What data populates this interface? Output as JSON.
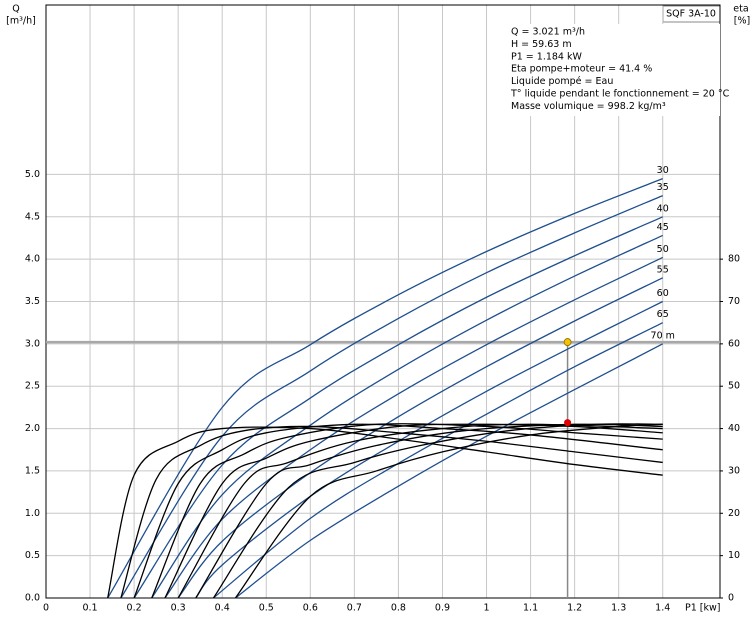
{
  "chart_data": {
    "type": "line",
    "title": "SQF 3A-10",
    "ylabel": [
      "Q",
      "[m³/h]"
    ],
    "y2label": [
      "eta",
      "[%]"
    ],
    "xlabel": "P1 [kw]",
    "info": [
      "Q = 3.021 m³/h",
      "H = 59.63 m",
      "P1 = 1.184 kW",
      "Eta pompe+moteur = 41.4 %",
      "Liquide pompé = Eau",
      "T° liquide pendant le fonctionnement = 20 °C",
      "Masse volumique = 998.2 kg/m³"
    ],
    "xlim": [
      0,
      1.53
    ],
    "ylim": [
      0,
      7
    ],
    "y2lim": [
      0,
      140
    ],
    "xticks": [
      0,
      0.1,
      0.2,
      0.3,
      0.4,
      0.5,
      0.6,
      0.7,
      0.8,
      0.9,
      1,
      1.1,
      1.2,
      1.3,
      1.4
    ],
    "yticks": [
      {
        "value": 0,
        "label": "0.0"
      },
      0.5,
      {
        "value": 1,
        "label": "1.0"
      },
      1.5,
      {
        "value": 2,
        "label": "2.0"
      },
      2.5,
      {
        "value": 3,
        "label": "3.0"
      },
      3.5,
      {
        "value": 4,
        "label": "4.0"
      },
      4.5,
      {
        "value": 5,
        "label": "5.0"
      }
    ],
    "y2ticks": [
      0,
      10,
      20,
      30,
      40,
      50,
      60,
      70,
      80
    ],
    "grid": true,
    "operating_point": {
      "x": 1.184,
      "y": 3.021,
      "eta": 41.4,
      "color": "#f5c400",
      "eta_color": "#e00000"
    },
    "series": [
      {
        "name": "30",
        "color": "#1f4f8f",
        "x": [
          0.14,
          0.4,
          0.6,
          0.8,
          1.0,
          1.2,
          1.4
        ],
        "values": [
          0,
          2.25,
          2.99,
          3.58,
          4.09,
          4.54,
          4.95
        ]
      },
      {
        "name": "35",
        "color": "#1f4f8f",
        "x": [
          0.17,
          0.4,
          0.6,
          0.8,
          1.0,
          1.2,
          1.4
        ],
        "values": [
          0,
          1.91,
          2.68,
          3.3,
          3.84,
          4.31,
          4.75
        ]
      },
      {
        "name": "40",
        "color": "#1f4f8f",
        "x": [
          0.2,
          0.4,
          0.6,
          0.8,
          1.0,
          1.2,
          1.4
        ],
        "values": [
          0,
          1.57,
          2.36,
          2.99,
          3.55,
          4.04,
          4.5
        ]
      },
      {
        "name": "45",
        "color": "#1f4f8f",
        "x": [
          0.24,
          0.4,
          0.6,
          0.8,
          1.0,
          1.2,
          1.4
        ],
        "values": [
          0,
          1.22,
          2.04,
          2.7,
          3.28,
          3.8,
          4.28
        ]
      },
      {
        "name": "50",
        "color": "#1f4f8f",
        "x": [
          0.27,
          0.4,
          0.6,
          0.8,
          1.0,
          1.2,
          1.4
        ],
        "values": [
          0,
          0.93,
          1.75,
          2.41,
          2.99,
          3.52,
          4.02
        ]
      },
      {
        "name": "55",
        "color": "#1f4f8f",
        "x": [
          0.3,
          0.4,
          0.6,
          0.8,
          1.0,
          1.2,
          1.4
        ],
        "values": [
          0,
          0.67,
          1.48,
          2.14,
          2.73,
          3.27,
          3.78
        ]
      },
      {
        "name": "60",
        "color": "#1f4f8f",
        "x": [
          0.34,
          0.4,
          0.6,
          0.8,
          1.0,
          1.2,
          1.4
        ],
        "values": [
          0,
          0.39,
          1.2,
          1.85,
          2.44,
          2.98,
          3.5
        ]
      },
      {
        "name": "65",
        "color": "#1f4f8f",
        "x": [
          0.38,
          0.6,
          0.8,
          1.0,
          1.2,
          1.4
        ],
        "values": [
          0,
          0.94,
          1.59,
          2.17,
          2.73,
          3.25
        ]
      },
      {
        "name": "70 m",
        "color": "#1f4f8f",
        "x": [
          0.43,
          0.6,
          0.8,
          1.0,
          1.2,
          1.4
        ],
        "values": [
          0,
          0.68,
          1.32,
          1.91,
          2.46,
          3.0
        ]
      },
      {
        "color": "#000000",
        "axis": "y2",
        "x": [
          0.14,
          0.2,
          0.3,
          0.4,
          0.6,
          0.8,
          1.0,
          1.2,
          1.4
        ],
        "values": [
          0,
          29,
          37,
          40,
          40,
          37.5,
          34.5,
          31.5,
          29
        ]
      },
      {
        "color": "#000000",
        "axis": "y2",
        "x": [
          0.17,
          0.25,
          0.35,
          0.45,
          0.6,
          0.8,
          1.0,
          1.2,
          1.4
        ],
        "values": [
          0,
          28,
          36,
          39.5,
          40.5,
          39,
          37,
          34.5,
          32
        ]
      },
      {
        "color": "#000000",
        "axis": "y2",
        "x": [
          0.2,
          0.3,
          0.4,
          0.5,
          0.7,
          0.9,
          1.1,
          1.4
        ],
        "values": [
          0,
          27,
          35,
          39,
          41,
          40,
          38.5,
          35
        ]
      },
      {
        "color": "#000000",
        "axis": "y2",
        "x": [
          0.24,
          0.35,
          0.45,
          0.55,
          0.75,
          1.0,
          1.2,
          1.4
        ],
        "values": [
          0,
          27,
          34,
          38,
          41,
          40.5,
          39,
          37.5
        ]
      },
      {
        "color": "#000000",
        "axis": "y2",
        "x": [
          0.27,
          0.4,
          0.5,
          0.6,
          0.8,
          1.0,
          1.2,
          1.4
        ],
        "values": [
          0,
          27,
          33,
          37,
          40.5,
          41,
          40.5,
          39
        ]
      },
      {
        "color": "#000000",
        "axis": "y2",
        "x": [
          0.3,
          0.45,
          0.55,
          0.7,
          0.9,
          1.1,
          1.4
        ],
        "values": [
          0,
          27,
          32,
          37,
          40,
          41,
          40
        ]
      },
      {
        "color": "#000000",
        "axis": "y2",
        "x": [
          0.34,
          0.5,
          0.6,
          0.75,
          0.95,
          1.2,
          1.4
        ],
        "values": [
          0,
          27,
          31.5,
          36,
          39.5,
          41,
          40.5
        ]
      },
      {
        "color": "#000000",
        "axis": "y2",
        "x": [
          0.38,
          0.55,
          0.7,
          0.85,
          1.05,
          1.25,
          1.4
        ],
        "values": [
          0,
          26,
          32,
          36,
          39.5,
          41,
          41
        ]
      },
      {
        "color": "#000000",
        "axis": "y2",
        "x": [
          0.43,
          0.6,
          0.75,
          0.9,
          1.1,
          1.3,
          1.4
        ],
        "values": [
          0,
          24,
          30,
          34.5,
          38.5,
          40.5,
          41
        ]
      }
    ]
  }
}
